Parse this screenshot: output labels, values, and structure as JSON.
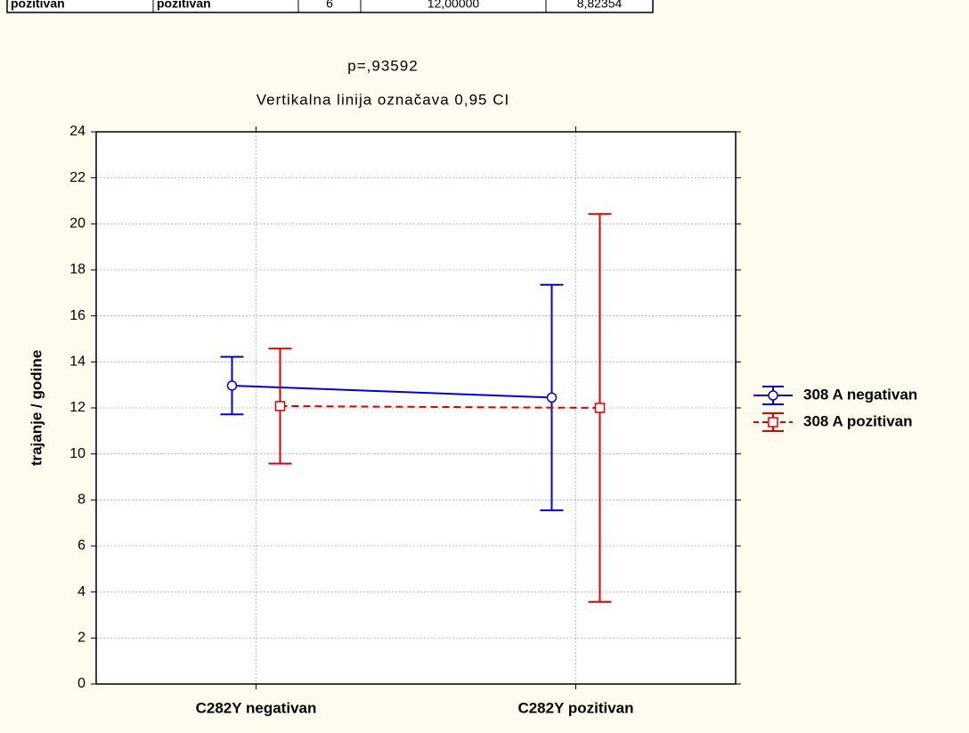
{
  "table": {
    "rows": [
      [
        "pozitivan",
        "pozitivan",
        "6",
        "12,00000",
        "8,82354"
      ]
    ]
  },
  "chart_data": {
    "type": "errorbar-line",
    "title": "p=,93592",
    "subtitle": "Vertikalna linija označava 0,95 CI",
    "y_label": "trajanje / godine",
    "categories": [
      "C282Y negativan",
      "C282Y pozitivan"
    ],
    "series": [
      {
        "name": "308 A negativan",
        "color": "#0000dd",
        "marker": "circle",
        "dashed": false,
        "values": [
          12.97,
          12.45
        ],
        "errors": [
          1.25,
          4.9
        ]
      },
      {
        "name": "308 A pozitivan",
        "color": "#dd0000",
        "marker": "square",
        "dashed": true,
        "values": [
          12.08,
          12.0
        ],
        "errors": [
          2.5,
          8.43
        ]
      }
    ],
    "ylim": [
      0,
      24
    ],
    "yticks": [
      0,
      2,
      4,
      6,
      8,
      10,
      12,
      14,
      16,
      18,
      20,
      22,
      24
    ],
    "grid": true,
    "legend": "right"
  }
}
